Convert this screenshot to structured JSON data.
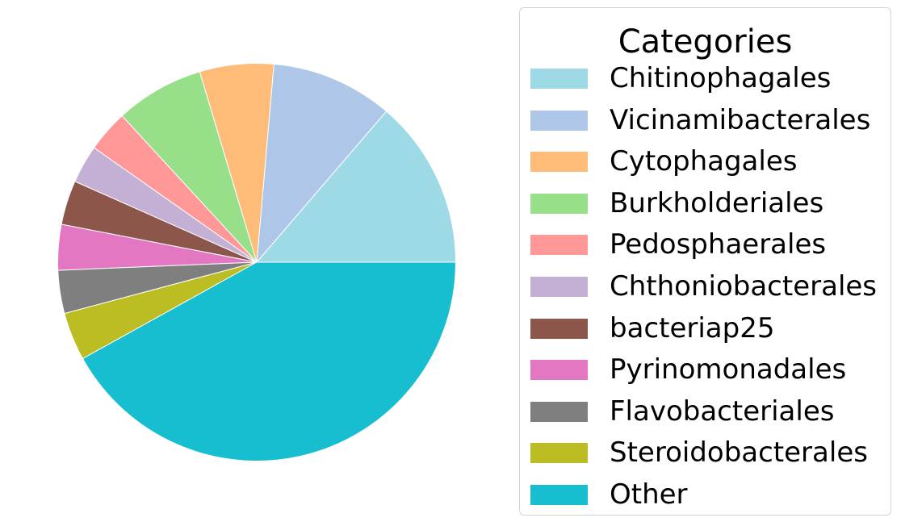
{
  "chart_data": {
    "type": "pie",
    "title": "",
    "legend_title": "Categories",
    "legend_placement": "right",
    "start_angle_deg": 0,
    "direction": "counterclockwise",
    "slices": [
      {
        "label": "Chitinophagales",
        "value": 13.7,
        "color": "#9edae5"
      },
      {
        "label": "Vicinamibacterales",
        "value": 9.9,
        "color": "#aec7e8"
      },
      {
        "label": "Cytophagales",
        "value": 6.0,
        "color": "#ffbb78"
      },
      {
        "label": "Burkholderiales",
        "value": 7.2,
        "color": "#98df8a"
      },
      {
        "label": "Pedosphaerales",
        "value": 3.4,
        "color": "#ff9896"
      },
      {
        "label": "Chthoniobacterales",
        "value": 3.1,
        "color": "#c5b0d5"
      },
      {
        "label": "bacteriap25",
        "value": 3.6,
        "color": "#8c564b"
      },
      {
        "label": "Pyrinomonadales",
        "value": 3.7,
        "color": "#e377c2"
      },
      {
        "label": "Flavobacteriales",
        "value": 3.5,
        "color": "#7f7f7f"
      },
      {
        "label": "Steroidobacterales",
        "value": 3.9,
        "color": "#bcbd22"
      },
      {
        "label": "Other",
        "value": 41.9,
        "color": "#17becf"
      }
    ]
  }
}
